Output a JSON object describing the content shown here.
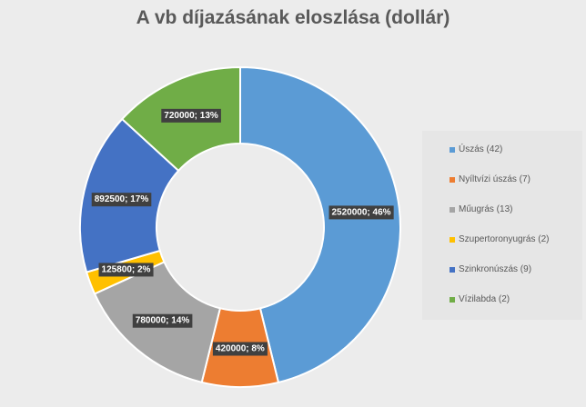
{
  "chart_data": {
    "type": "pie",
    "subtype": "donut",
    "title": "A vb díjazásának eloszlása (dollár)",
    "legend_position": "right",
    "series": [
      {
        "name": "Úszás (42)",
        "value": 2520000,
        "label": "2520000; 46%",
        "color": "#5b9bd5"
      },
      {
        "name": "Nyíltvízi úszás (7)",
        "value": 420000,
        "label": "420000; 8%",
        "color": "#ed7d31"
      },
      {
        "name": "Műugrás (13)",
        "value": 780000,
        "label": "780000; 14%",
        "color": "#a5a5a5"
      },
      {
        "name": "Szupertoronyugrás (2)",
        "value": 125800,
        "label": "125800; 2%",
        "color": "#ffc000"
      },
      {
        "name": "Szinkronúszás (9)",
        "value": 892500,
        "label": "892500; 17%",
        "color": "#4472c4"
      },
      {
        "name": "Vízilabda (2)",
        "value": 720000,
        "label": "720000; 13%",
        "color": "#70ad47"
      }
    ]
  }
}
